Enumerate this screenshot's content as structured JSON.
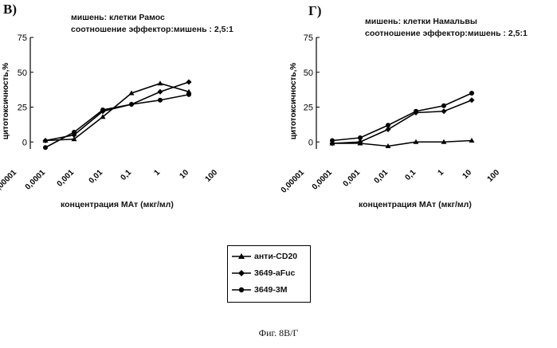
{
  "panels": [
    {
      "letter": "В)",
      "caption_line1": "мишень: клетки Рамос",
      "caption_line2": "соотношение эффектор:мишень : 2,5:1",
      "xlabel": "концентрация МАт (мкг/мл)",
      "ylabel": "цитотоксичность,%"
    },
    {
      "letter": "Г)",
      "caption_line1": "мишень: клетки Намальвы",
      "caption_line2": "соотношение эффектор:мишень : 2,5:1",
      "xlabel": "концентрация МАт (мкг/мл)",
      "ylabel": "цитотоксичность,%"
    }
  ],
  "legend": {
    "items": [
      {
        "label": "анти-CD20",
        "marker": "triangle"
      },
      {
        "label": "3649-aFuc",
        "marker": "diamond"
      },
      {
        "label": "3649-3M",
        "marker": "circle"
      }
    ]
  },
  "figure_caption": "Фиг. 8В/Г",
  "chart_data": [
    {
      "type": "line",
      "x_scale": "log",
      "x_ticks": [
        "0,00001",
        "0,0001",
        "0,001",
        "0,01",
        "0,1",
        "1",
        "10",
        "100"
      ],
      "x_tick_values": [
        1e-05,
        0.0001,
        0.001,
        0.01,
        0.1,
        1,
        10,
        100
      ],
      "y_ticks": [
        "0",
        "25",
        "50",
        "75"
      ],
      "y_tick_values": [
        0,
        25,
        50,
        75
      ],
      "ylim": [
        -5,
        75
      ],
      "xlabel": "концентрация МАт (мкг/мл)",
      "ylabel": "цитотоксичность,%",
      "series": [
        {
          "name": "анти-CD20",
          "marker": "triangle",
          "x": [
            0.0001,
            0.001,
            0.01,
            0.1,
            1,
            10
          ],
          "y": [
            1,
            2,
            18,
            35,
            42,
            36
          ]
        },
        {
          "name": "3649-aFuc",
          "marker": "diamond",
          "x": [
            0.0001,
            0.001,
            0.01,
            0.1,
            1,
            10
          ],
          "y": [
            1,
            5,
            22,
            27,
            36,
            43
          ]
        },
        {
          "name": "3649-3M",
          "marker": "circle",
          "x": [
            0.0001,
            0.001,
            0.01,
            0.1,
            1,
            10
          ],
          "y": [
            -4,
            7,
            23,
            27,
            30,
            34
          ]
        }
      ]
    },
    {
      "type": "line",
      "x_scale": "log",
      "x_ticks": [
        "0,00001",
        "0,0001",
        "0,001",
        "0,01",
        "0,1",
        "1",
        "10",
        "100"
      ],
      "x_tick_values": [
        1e-05,
        0.0001,
        0.001,
        0.01,
        0.1,
        1,
        10,
        100
      ],
      "y_ticks": [
        "0",
        "25",
        "50",
        "75"
      ],
      "y_tick_values": [
        0,
        25,
        50,
        75
      ],
      "ylim": [
        -5,
        75
      ],
      "xlabel": "концентрация МАт (мкг/мл)",
      "ylabel": "цитотоксичность,%",
      "series": [
        {
          "name": "анти-CD20",
          "marker": "triangle",
          "x": [
            0.0001,
            0.001,
            0.01,
            0.1,
            1,
            10
          ],
          "y": [
            -1,
            -1,
            -3,
            0,
            0,
            1
          ]
        },
        {
          "name": "3649-aFuc",
          "marker": "diamond",
          "x": [
            0.0001,
            0.001,
            0.01,
            0.1,
            1,
            10
          ],
          "y": [
            -1,
            0,
            9,
            21,
            22,
            30
          ]
        },
        {
          "name": "3649-3M",
          "marker": "circle",
          "x": [
            0.0001,
            0.001,
            0.01,
            0.1,
            1,
            10
          ],
          "y": [
            1,
            3,
            12,
            22,
            26,
            35
          ]
        }
      ]
    }
  ]
}
